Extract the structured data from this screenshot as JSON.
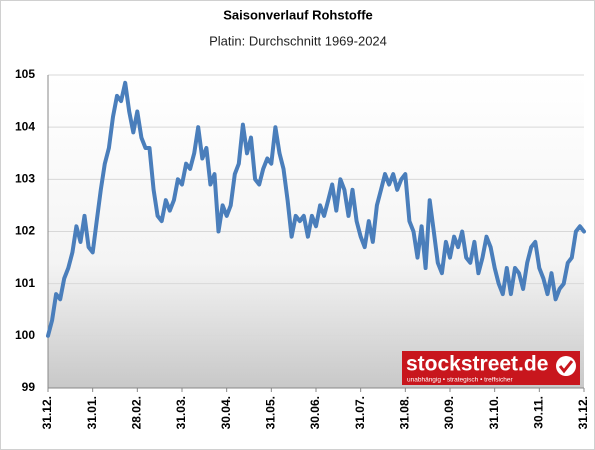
{
  "chart_data": {
    "type": "line",
    "title": "Saisonverlauf Rohstoffe",
    "subtitle": "Platin: Durchschnitt 1969-2024",
    "logo_text": "stockstreet.de",
    "logo_tagline": "unabhängig • strategisch • treffsicher",
    "color": "#4a7ebb",
    "grid": true,
    "ylim": [
      99,
      105
    ],
    "yticks": [
      99,
      100,
      101,
      102,
      103,
      104,
      105
    ],
    "categories": [
      "31.12.",
      null,
      null,
      null,
      null,
      null,
      null,
      null,
      null,
      null,
      null,
      "31.01.",
      null,
      null,
      null,
      null,
      null,
      null,
      null,
      null,
      null,
      null,
      "28.02.",
      null,
      null,
      null,
      null,
      null,
      null,
      null,
      null,
      null,
      null,
      "31.03.",
      null,
      null,
      null,
      null,
      null,
      null,
      null,
      null,
      null,
      null,
      "30.04.",
      null,
      null,
      null,
      null,
      null,
      null,
      null,
      null,
      null,
      null,
      "31.05.",
      null,
      null,
      null,
      null,
      null,
      null,
      null,
      null,
      null,
      null,
      "30.06.",
      null,
      null,
      null,
      null,
      null,
      null,
      null,
      null,
      null,
      null,
      "31.07.",
      null,
      null,
      null,
      null,
      null,
      null,
      null,
      null,
      null,
      null,
      "31.08.",
      null,
      null,
      null,
      null,
      null,
      null,
      null,
      null,
      null,
      null,
      "30.09.",
      null,
      null,
      null,
      null,
      null,
      null,
      null,
      null,
      null,
      null,
      "31.10.",
      null,
      null,
      null,
      null,
      null,
      null,
      null,
      null,
      null,
      null,
      "30.11.",
      null,
      null,
      null,
      null,
      null,
      null,
      null,
      null,
      null,
      null,
      "31.12."
    ],
    "values": [
      100,
      100.3,
      100.8,
      100.7,
      101.1,
      101.3,
      101.6,
      102.1,
      101.8,
      102.3,
      101.7,
      101.6,
      102.2,
      102.8,
      103.3,
      103.6,
      104.2,
      104.6,
      104.5,
      104.85,
      104.3,
      103.9,
      104.3,
      103.8,
      103.6,
      103.6,
      102.8,
      102.3,
      102.2,
      102.6,
      102.4,
      102.6,
      103.0,
      102.9,
      103.3,
      103.2,
      103.5,
      104.0,
      103.4,
      103.6,
      102.9,
      103.1,
      102.0,
      102.5,
      102.3,
      102.5,
      103.1,
      103.3,
      104.05,
      103.5,
      103.8,
      103.0,
      102.9,
      103.2,
      103.4,
      103.3,
      104.0,
      103.5,
      103.2,
      102.6,
      101.9,
      102.3,
      102.2,
      102.3,
      101.9,
      102.3,
      102.1,
      102.5,
      102.3,
      102.6,
      102.9,
      102.4,
      103.0,
      102.8,
      102.3,
      102.8,
      102.2,
      101.9,
      101.7,
      102.2,
      101.8,
      102.5,
      102.8,
      103.1,
      102.9,
      103.1,
      102.8,
      103.0,
      103.1,
      102.2,
      102.0,
      101.5,
      102.1,
      101.3,
      102.6,
      102.0,
      101.4,
      101.2,
      101.8,
      101.5,
      101.9,
      101.7,
      102.0,
      101.5,
      101.4,
      101.8,
      101.2,
      101.5,
      101.9,
      101.7,
      101.3,
      101.0,
      100.8,
      101.3,
      100.8,
      101.3,
      101.2,
      100.9,
      101.4,
      101.7,
      101.8,
      101.3,
      101.1,
      100.8,
      101.2,
      100.7,
      100.9,
      101.0,
      101.4,
      101.5,
      102.0,
      102.1,
      102.0
    ]
  }
}
